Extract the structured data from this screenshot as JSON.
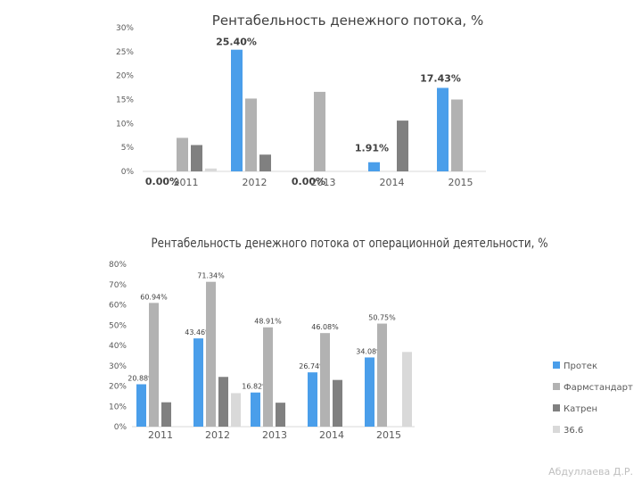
{
  "author": "Абдуллаева Д.Р.",
  "chart_data": [
    {
      "type": "bar",
      "title": "Рентабельность денежного потока, %",
      "categories": [
        "2011",
        "2012",
        "2013",
        "2014",
        "2015"
      ],
      "ylim": [
        0,
        30
      ],
      "yticks": [
        0,
        5,
        10,
        15,
        20,
        25,
        30
      ],
      "ytick_labels": [
        "0%",
        "5%",
        "10%",
        "15%",
        "20%",
        "25%",
        "30%"
      ],
      "series": [
        {
          "name": "Протек",
          "color": "#4a9eea",
          "values": [
            0.0,
            25.4,
            0.0,
            1.91,
            17.43
          ],
          "labels": [
            "0.00%",
            "25.40%",
            "0.00%",
            "1.91%",
            "17.43%"
          ]
        },
        {
          "name": "Фармстандарт",
          "color": "#b2b2b2",
          "values": [
            7.0,
            15.2,
            16.6,
            0,
            15.0
          ]
        },
        {
          "name": "Катрен",
          "color": "#808080",
          "values": [
            5.5,
            3.5,
            0,
            10.6,
            0
          ]
        },
        {
          "name": "36.6",
          "color": "#d9d9d9",
          "values": [
            0.6,
            0,
            0,
            0,
            0
          ]
        }
      ]
    },
    {
      "type": "bar",
      "title": "Рентабельность денежного потока от операционной деятельности, %",
      "categories": [
        "2011",
        "2012",
        "2013",
        "2014",
        "2015"
      ],
      "ylim": [
        0,
        80
      ],
      "yticks": [
        0,
        10,
        20,
        30,
        40,
        50,
        60,
        70,
        80
      ],
      "ytick_labels": [
        "0%",
        "10%",
        "20%",
        "30%",
        "40%",
        "50%",
        "60%",
        "70%",
        "80%"
      ],
      "legend": [
        "Протек",
        "Фармстандарт",
        "Катрен",
        "36.6"
      ],
      "series": [
        {
          "name": "Протек",
          "color": "#4a9eea",
          "values": [
            20.88,
            43.46,
            16.82,
            26.74,
            34.08
          ],
          "labels": [
            "20.88%",
            "43.46%",
            "16.82%",
            "26.74%",
            "34.08%"
          ]
        },
        {
          "name": "Фармстандарт",
          "color": "#b2b2b2",
          "values": [
            60.94,
            71.34,
            48.91,
            46.08,
            50.75
          ],
          "labels": [
            "60.94%",
            "71.34%",
            "48.91%",
            "46.08%",
            "50.75%"
          ]
        },
        {
          "name": "Катрен",
          "color": "#808080",
          "values": [
            12.0,
            24.5,
            11.8,
            23.0,
            0
          ]
        },
        {
          "name": "36.6",
          "color": "#d9d9d9",
          "values": [
            0,
            16.5,
            0,
            0,
            36.8
          ]
        }
      ]
    }
  ]
}
